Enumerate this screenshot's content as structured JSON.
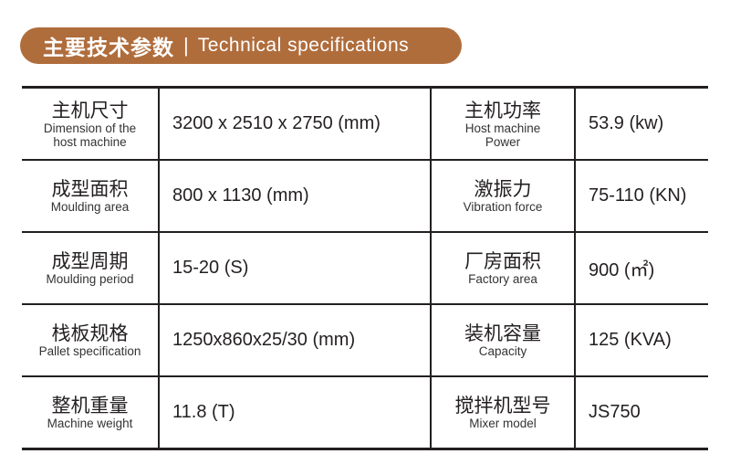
{
  "header": {
    "title_cn": "主要技术参数",
    "separator": "|",
    "title_en": "Technical specifications",
    "accent_color": "#b06d3c"
  },
  "rows": [
    {
      "left": {
        "zh": "主机尺寸",
        "en": "Dimension of the host machine",
        "value": "3200 x 2510 x 2750 (mm)"
      },
      "right": {
        "zh": "主机功率",
        "en": "Host machine Power",
        "value": "53.9 (kw)"
      }
    },
    {
      "left": {
        "zh": "成型面积",
        "en": "Moulding area",
        "value": "800 x 1130 (mm)"
      },
      "right": {
        "zh": "激振力",
        "en": "Vibration force",
        "value": "75-110 (KN)"
      }
    },
    {
      "left": {
        "zh": "成型周期",
        "en": "Moulding period",
        "value": "15-20 (S)"
      },
      "right": {
        "zh": "厂房面积",
        "en": "Factory area",
        "value": "900 (㎡)"
      }
    },
    {
      "left": {
        "zh": "栈板规格",
        "en": "Pallet specification",
        "value": "1250x860x25/30 (mm)"
      },
      "right": {
        "zh": "装机容量",
        "en": "Capacity",
        "value": "125 (KVA)"
      }
    },
    {
      "left": {
        "zh": "整机重量",
        "en": "Machine weight",
        "value": "11.8 (T)"
      },
      "right": {
        "zh": "搅拌机型号",
        "en": "Mixer model",
        "value": "JS750"
      }
    }
  ]
}
